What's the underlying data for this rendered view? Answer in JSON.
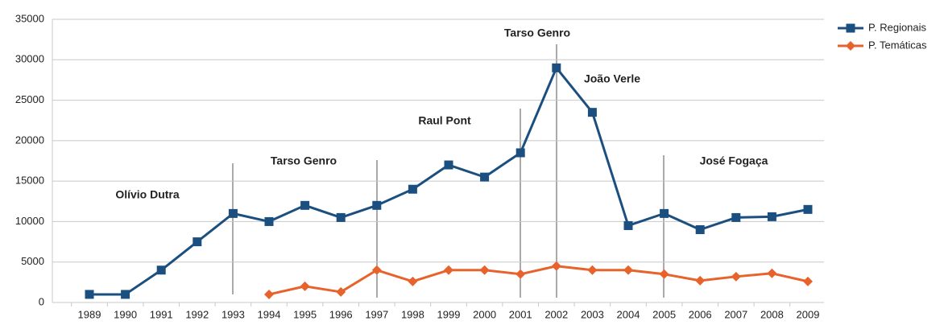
{
  "chart_data": {
    "type": "line",
    "categories": [
      "1989",
      "1990",
      "1991",
      "1992",
      "1993",
      "1994",
      "1995",
      "1996",
      "1997",
      "1998",
      "1999",
      "2000",
      "2001",
      "2002",
      "2003",
      "2004",
      "2005",
      "2006",
      "2007",
      "2008",
      "2009"
    ],
    "series": [
      {
        "name": "P. Regionais",
        "color": "#1b4f80",
        "marker": "square",
        "values": [
          1000,
          1000,
          4000,
          7500,
          11000,
          10000,
          12000,
          10500,
          12000,
          14000,
          17000,
          15500,
          18500,
          29000,
          23500,
          9500,
          11000,
          9000,
          10500,
          10600,
          11500
        ]
      },
      {
        "name": "P. Temáticas",
        "color": "#e8622c",
        "marker": "diamond",
        "values": [
          null,
          null,
          null,
          null,
          null,
          1000,
          2000,
          1300,
          4000,
          2600,
          4000,
          4000,
          3500,
          4500,
          4000,
          4000,
          3500,
          2700,
          3200,
          3600,
          2600
        ]
      }
    ],
    "annotations": [
      "Olívio Dutra",
      "Tarso Genro",
      "Raul Pont",
      "Tarso Genro",
      "João Verle",
      "José Fogaça"
    ],
    "ylim": [
      0,
      35000
    ],
    "yticks": [
      0,
      5000,
      10000,
      15000,
      20000,
      25000,
      30000,
      35000
    ],
    "grid": true,
    "legend": "top-right"
  }
}
